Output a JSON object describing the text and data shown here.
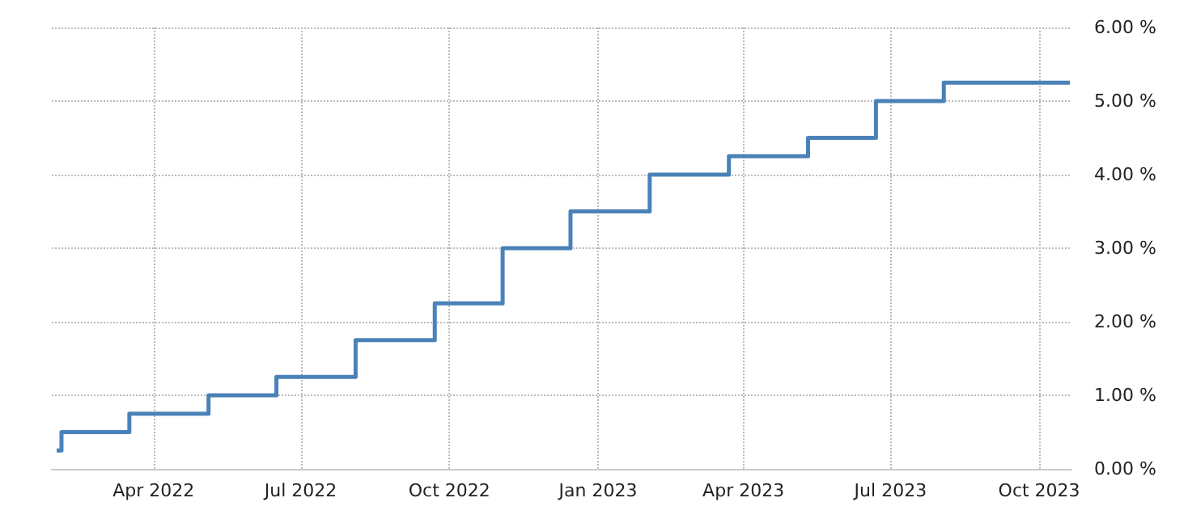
{
  "chart_data": {
    "type": "step",
    "x": [
      "2022-01-31",
      "2022-02-03",
      "2022-03-17",
      "2022-05-05",
      "2022-06-16",
      "2022-08-04",
      "2022-09-22",
      "2022-11-03",
      "2022-12-15",
      "2023-02-02",
      "2023-03-23",
      "2023-05-11",
      "2023-06-22",
      "2023-08-03",
      "2023-10-20"
    ],
    "series": [
      {
        "color": "#4a82b8",
        "values": [
          0.25,
          0.5,
          0.75,
          1.0,
          1.25,
          1.75,
          2.25,
          3.0,
          3.5,
          4.0,
          4.25,
          4.5,
          5.0,
          5.25,
          5.25
        ]
      }
    ],
    "xlim": [
      "2022-01-28",
      "2023-10-21"
    ],
    "xticks": [
      {
        "value": "2022-04-01",
        "label": "Apr 2022"
      },
      {
        "value": "2022-07-01",
        "label": "Jul 2022"
      },
      {
        "value": "2022-10-01",
        "label": "Oct 2022"
      },
      {
        "value": "2023-01-01",
        "label": "Jan 2023"
      },
      {
        "value": "2023-04-01",
        "label": "Apr 2023"
      },
      {
        "value": "2023-07-01",
        "label": "Jul 2023"
      },
      {
        "value": "2023-10-01",
        "label": "Oct 2023"
      }
    ],
    "ylim": [
      0,
      6
    ],
    "yticks": [
      {
        "value": 0,
        "label": "0.00 %"
      },
      {
        "value": 1,
        "label": "1.00 %"
      },
      {
        "value": 2,
        "label": "2.00 %"
      },
      {
        "value": 3,
        "label": "3.00 %"
      },
      {
        "value": 4,
        "label": "4.00 %"
      },
      {
        "value": 5,
        "label": "5.00 %"
      },
      {
        "value": 6,
        "label": "6.00 %"
      }
    ],
    "grid": true,
    "marker": "none",
    "line_style": "solid"
  }
}
